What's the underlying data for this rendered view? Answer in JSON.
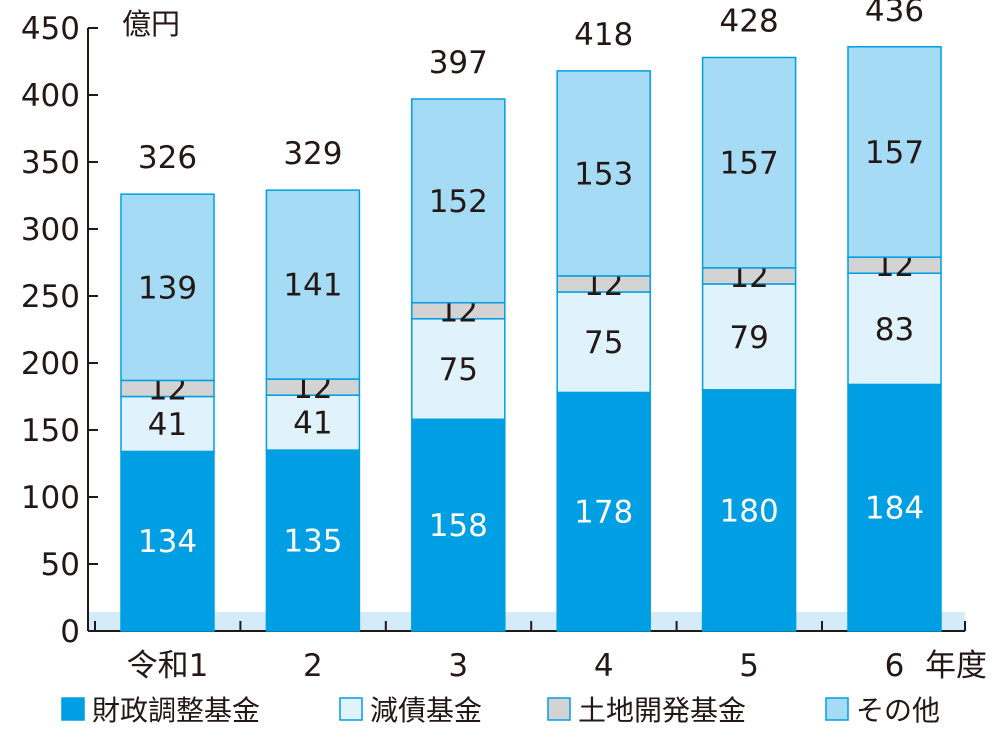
{
  "chart_data": {
    "type": "bar",
    "stacked": true,
    "unit_label": "億円",
    "x_unit_label": "年度",
    "ylim": [
      0,
      450
    ],
    "yticks": [
      0,
      50,
      100,
      150,
      200,
      250,
      300,
      350,
      400,
      450
    ],
    "categories": [
      "令和1",
      "2",
      "3",
      "4",
      "5",
      "6"
    ],
    "series": [
      {
        "name": "財政調整基金",
        "color": "#009fe3",
        "label_color": "#ffffff",
        "values": [
          134,
          135,
          158,
          178,
          180,
          184
        ]
      },
      {
        "name": "減債基金",
        "color": "#e0f3fc",
        "label_color": "#231815",
        "values": [
          41,
          41,
          75,
          75,
          79,
          83
        ]
      },
      {
        "name": "土地開発基金",
        "color": "#d3d3d3",
        "label_color": "#231815",
        "values": [
          12,
          12,
          12,
          12,
          12,
          12
        ]
      },
      {
        "name": "その他",
        "color": "#a5dbf5",
        "label_color": "#231815",
        "values": [
          139,
          141,
          152,
          153,
          157,
          157
        ]
      }
    ],
    "totals": [
      326,
      329,
      397,
      418,
      428,
      436
    ],
    "grid": false,
    "legend_position": "bottom",
    "axis_color": "#231815",
    "bar_border_color": "#009fe3",
    "baseline_band_color": "#d4ecf9"
  }
}
